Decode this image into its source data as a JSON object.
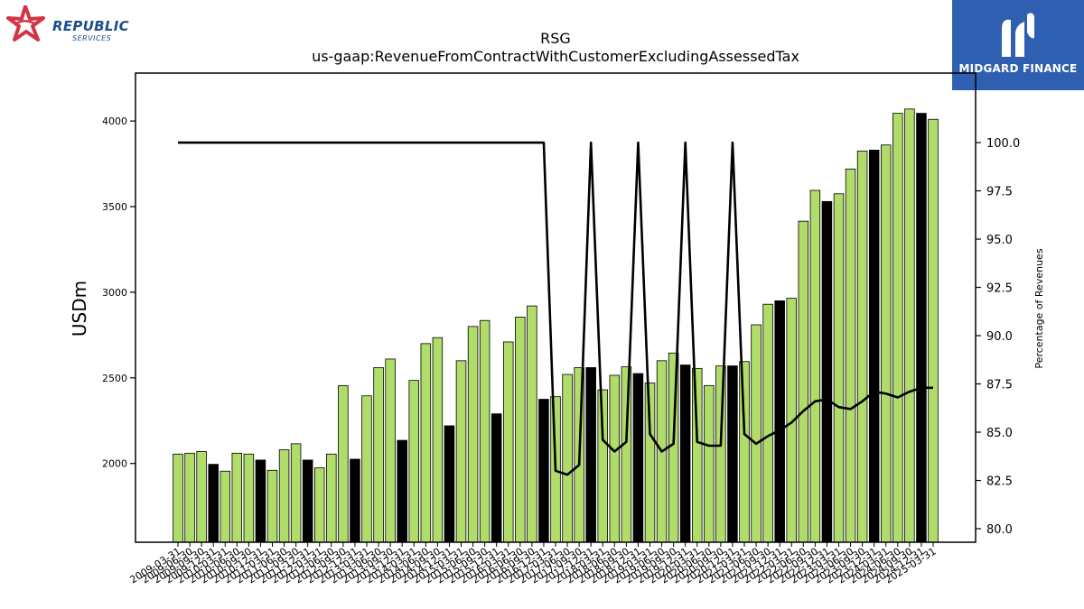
{
  "header": {
    "company_name": "REPUBLIC",
    "company_tagline": "SERVICES",
    "partner_name": "MIDGARD FINANCE"
  },
  "colors": {
    "bar_green": "#b0dc6a",
    "bar_black": "#000000",
    "line": "#000000",
    "partner_bg": "#2f5fb0",
    "logo_red": "#d23546",
    "logo_blue": "#1b4f8a"
  },
  "chart_data": {
    "type": "bar",
    "title": "RSG",
    "subtitle": "us-gaap:RevenueFromContractWithCustomerExcludingAssessedTax",
    "ylabel": "USDm",
    "y2label": "Percentage of Revenues",
    "ylim": [
      1540,
      4280
    ],
    "y2lim": [
      79.3,
      103.6
    ],
    "yticks": [
      2000,
      2500,
      3000,
      3500,
      4000
    ],
    "y2ticks": [
      "80.0",
      "82.5",
      "85.0",
      "87.5",
      "90.0",
      "92.5",
      "95.0",
      "97.5",
      "100.0"
    ],
    "grid": false,
    "x": [
      "2009-03-31",
      "2009-06-30",
      "2009-09-30",
      "2009-12-31",
      "2010-03-31",
      "2010-06-30",
      "2010-09-30",
      "2010-12-31",
      "2011-03-31",
      "2011-06-30",
      "2011-09-30",
      "2011-12-31",
      "2012-03-31",
      "2012-06-30",
      "2012-09-30",
      "2012-12-31",
      "2013-03-31",
      "2013-06-30",
      "2013-09-30",
      "2013-12-31",
      "2014-03-31",
      "2014-06-30",
      "2014-09-30",
      "2014-12-31",
      "2015-03-31",
      "2015-06-30",
      "2015-09-30",
      "2015-12-31",
      "2016-03-31",
      "2016-06-30",
      "2016-09-30",
      "2016-12-31",
      "2017-03-31",
      "2017-06-30",
      "2017-09-30",
      "2017-12-31",
      "2018-03-31",
      "2018-06-30",
      "2018-09-30",
      "2018-12-31",
      "2019-03-31",
      "2019-06-30",
      "2019-09-30",
      "2019-12-31",
      "2020-03-31",
      "2020-06-30",
      "2020-09-30",
      "2020-12-31",
      "2021-03-31",
      "2021-06-30",
      "2021-09-30",
      "2021-12-31",
      "2022-03-31",
      "2022-06-30",
      "2022-09-30",
      "2022-12-31",
      "2023-03-31",
      "2023-06-30",
      "2023-09-30",
      "2023-12-31",
      "2024-03-31",
      "2024-06-30",
      "2024-09-30",
      "2024-12-31",
      "2025-03-31"
    ],
    "xtick_labels_visible": [
      "2009-03-31",
      "2009-06-30",
      "2009-09-30",
      "2009-12-31",
      "2010-03-31",
      "2010-06-30",
      "2010-09-30",
      "2010-12-31",
      "2011-03-31",
      "2011-06-30",
      "2011-09-30",
      "2011-12-31",
      "2012-03-31",
      "2012-06-30",
      "2012-09-30",
      "2012-12-31",
      "2013-03-31",
      "2013-06-30",
      "2013-09-30",
      "2013-12-31",
      "2014-03-31",
      "2014-06-30",
      "2014-09-30",
      "2014-12-31",
      "2015-03-31",
      "2015-06-30",
      "2015-09-30",
      "2015-12-31",
      "2016-03-31",
      "2016-06-30",
      "2016-09-30",
      "2016-12-31",
      "2017-03-31",
      "2017-06-30",
      "2017-09-30",
      "2017-12-31",
      "2018-03-31",
      "2018-06-30",
      "2018-09-30",
      "2018-12-31",
      "2019-03-31",
      "2019-06-30",
      "2019-09-30",
      "2019-12-31",
      "2020-03-31",
      "2020-06-30",
      "2020-09-30",
      "2020-12-31",
      "2021-03-31",
      "2021-06-30",
      "2021-09-30",
      "2021-12-31",
      "2022-03-31",
      "2022-06-30",
      "2022-09-30",
      "2022-12-31",
      "2023-03-31",
      "2023-06-30",
      "2023-09-30",
      "2023-12-31",
      "2024-03-31",
      "2024-06-30",
      "2024-09-30",
      "2024-12-31",
      "2025-03-31"
    ],
    "series": [
      {
        "type": "bar",
        "axis": "left",
        "values": [
          2055,
          2060,
          2070,
          1995,
          1955,
          2060,
          2055,
          2020,
          1960,
          2080,
          2115,
          2020,
          1975,
          2055,
          2455,
          2025,
          2395,
          2560,
          2610,
          2135,
          2485,
          2700,
          2735,
          2220,
          2600,
          2800,
          2835,
          2290,
          2710,
          2855,
          2920,
          2375,
          2390,
          2520,
          2560,
          2560,
          2430,
          2515,
          2565,
          2525,
          2470,
          2600,
          2645,
          2575,
          2555,
          2455,
          2570,
          2570,
          2595,
          2810,
          2930,
          2950,
          2965,
          3415,
          3595,
          3530,
          3575,
          3720,
          3825,
          3830,
          3860,
          4045,
          4070,
          4045,
          4010
        ],
        "colors": [
          "g",
          "g",
          "g",
          "b",
          "g",
          "g",
          "g",
          "b",
          "g",
          "g",
          "g",
          "b",
          "g",
          "g",
          "g",
          "b",
          "g",
          "g",
          "g",
          "b",
          "g",
          "g",
          "g",
          "b",
          "g",
          "g",
          "g",
          "b",
          "g",
          "g",
          "g",
          "b",
          "g",
          "g",
          "g",
          "b",
          "g",
          "g",
          "g",
          "b",
          "g",
          "g",
          "g",
          "b",
          "g",
          "g",
          "g",
          "b",
          "g",
          "g",
          "g",
          "b",
          "g",
          "g",
          "g",
          "b",
          "g",
          "g",
          "g",
          "b",
          "g",
          "g",
          "g",
          "b",
          "g"
        ]
      },
      {
        "type": "line",
        "axis": "right",
        "values": [
          100,
          100,
          100,
          100,
          100,
          100,
          100,
          100,
          100,
          100,
          100,
          100,
          100,
          100,
          100,
          100,
          100,
          100,
          100,
          100,
          100,
          100,
          100,
          100,
          100,
          100,
          100,
          100,
          100,
          100,
          100,
          100,
          83.0,
          82.8,
          83.3,
          100,
          84.6,
          84.0,
          84.5,
          100,
          84.9,
          84.0,
          84.4,
          100,
          84.5,
          84.3,
          84.3,
          100,
          84.9,
          84.4,
          84.8,
          85.1,
          85.5,
          86.1,
          86.6,
          86.7,
          86.3,
          86.2,
          86.6,
          87.1,
          87.0,
          86.8,
          87.1,
          87.3,
          87.3
        ]
      }
    ]
  }
}
